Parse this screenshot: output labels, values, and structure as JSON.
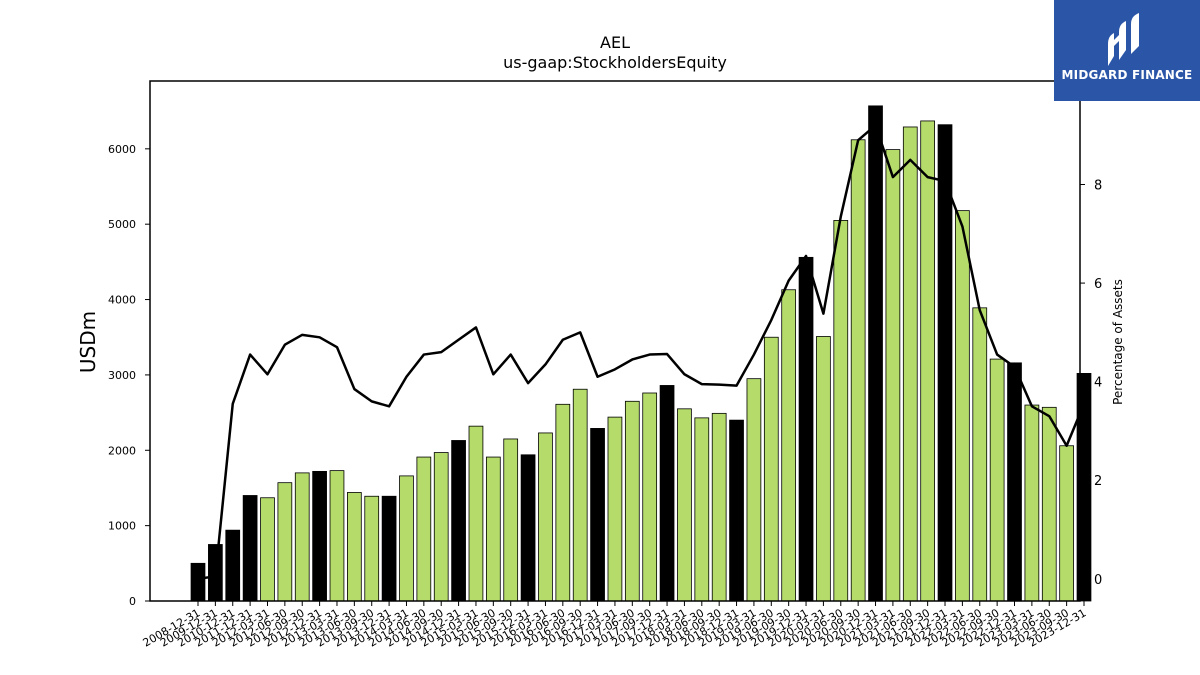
{
  "chart_data": {
    "type": "bar",
    "title": "AEL",
    "subtitle": "us-gaap:StockholdersEquity",
    "ylabel": "USDm",
    "ylabel_right": "Percentage of Assets",
    "ylim": [
      0,
      6900
    ],
    "ylim_right": [
      -0.45,
      10.1
    ],
    "yticks": [
      0,
      1000,
      2000,
      3000,
      4000,
      5000,
      6000
    ],
    "yticks_right": [
      0,
      2,
      4,
      6,
      8
    ],
    "categories": [
      "2008-12-31",
      "2009-12-31",
      "2010-12-31",
      "2011-12-31",
      "2012-03-31",
      "2012-06-30",
      "2012-09-30",
      "2012-12-31",
      "2013-03-31",
      "2013-06-30",
      "2013-09-30",
      "2013-12-31",
      "2014-03-31",
      "2014-06-30",
      "2014-09-30",
      "2014-12-31",
      "2015-03-31",
      "2015-06-30",
      "2015-09-30",
      "2015-12-31",
      "2016-03-31",
      "2016-06-30",
      "2016-09-30",
      "2016-12-31",
      "2017-03-31",
      "2017-06-30",
      "2017-09-30",
      "2017-12-31",
      "2018-03-31",
      "2018-06-30",
      "2018-09-30",
      "2018-12-31",
      "2019-03-31",
      "2019-06-30",
      "2019-09-30",
      "2019-12-31",
      "2020-03-31",
      "2020-06-30",
      "2020-09-30",
      "2020-12-31",
      "2021-03-31",
      "2021-06-30",
      "2021-09-30",
      "2021-12-31",
      "2022-03-31",
      "2022-06-30",
      "2022-09-30",
      "2022-12-31",
      "2023-03-31",
      "2023-06-30",
      "2023-09-30",
      "2023-12-31"
    ],
    "series": [
      {
        "values": [
          500,
          750,
          940,
          1400,
          1370,
          1570,
          1700,
          1720,
          1730,
          1440,
          1390,
          1390,
          1660,
          1910,
          1970,
          2130,
          2320,
          1910,
          2150,
          1940,
          2230,
          2610,
          2810,
          2290,
          2440,
          2650,
          2760,
          2860,
          2550,
          2430,
          2490,
          2400,
          2950,
          3500,
          4130,
          4560,
          3510,
          5050,
          6120,
          6570,
          5990,
          6290,
          6370,
          6320,
          5180,
          3890,
          3210,
          3160,
          2600,
          2570,
          2060,
          3020
        ],
        "year_end": [
          true,
          true,
          true,
          true,
          false,
          false,
          false,
          true,
          false,
          false,
          false,
          true,
          false,
          false,
          false,
          true,
          false,
          false,
          false,
          true,
          false,
          false,
          false,
          true,
          false,
          false,
          false,
          true,
          false,
          false,
          false,
          true,
          false,
          false,
          false,
          true,
          false,
          false,
          false,
          true,
          false,
          false,
          false,
          true,
          false,
          false,
          false,
          true,
          false,
          false,
          false,
          true
        ]
      },
      {
        "axis": "right",
        "type": "line",
        "values": [
          0.0,
          0.05,
          3.55,
          4.55,
          4.15,
          4.75,
          4.95,
          4.9,
          4.7,
          3.85,
          3.6,
          3.5,
          4.1,
          4.55,
          4.6,
          4.85,
          5.1,
          4.15,
          4.55,
          3.97,
          4.35,
          4.85,
          5.0,
          4.1,
          4.25,
          4.45,
          4.55,
          4.56,
          4.15,
          3.95,
          3.94,
          3.92,
          4.55,
          5.25,
          6.05,
          6.55,
          5.38,
          7.35,
          8.9,
          9.2,
          8.15,
          8.5,
          8.15,
          8.07,
          7.15,
          5.45,
          4.55,
          4.3,
          3.5,
          3.3,
          2.7,
          3.55
        ]
      }
    ],
    "colors": {
      "bar": "#b5dc6a",
      "bar_year_end": "#000000",
      "line": "#000000"
    },
    "grid": false
  },
  "logo": {
    "text": "MIDGARD FINANCE",
    "bg": "#2b56a8"
  }
}
